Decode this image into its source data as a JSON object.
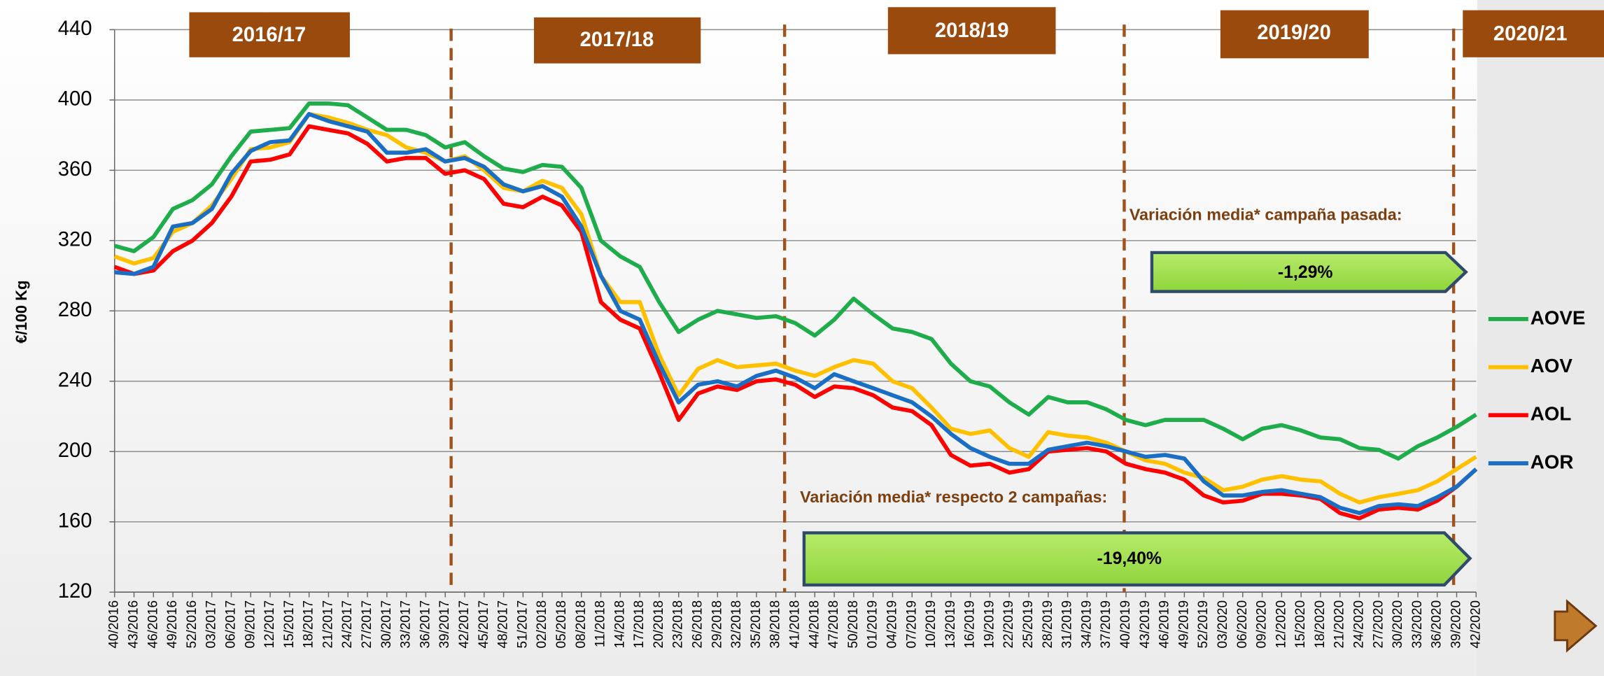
{
  "chart_data": {
    "type": "line",
    "y_label": "€/100 Kg",
    "campaigns": [
      "2016/17",
      "2017/18",
      "2018/19",
      "2019/20",
      "2020/21"
    ],
    "annotations": [
      "Variación media* campaña pasada:",
      "-1,29%",
      "Variación media* respecto 2 campañas:",
      "-19,40%"
    ],
    "categories": [
      "40/2016",
      "43/2016",
      "46/2016",
      "49/2016",
      "52/2016",
      "03/2017",
      "06/2017",
      "09/2017",
      "12/2017",
      "15/2017",
      "18/2017",
      "21/2017",
      "24/2017",
      "27/2017",
      "30/2017",
      "33/2017",
      "36/2017",
      "39/2017",
      "42/2017",
      "45/2017",
      "48/2017",
      "51/2017",
      "02/2018",
      "05/2018",
      "08/2018",
      "11/2018",
      "14/2018",
      "17/2018",
      "20/2018",
      "23/2018",
      "26/2018",
      "29/2018",
      "32/2018",
      "35/2018",
      "38/2018",
      "41/2018",
      "44/2018",
      "47/2018",
      "50/2018",
      "01/2019",
      "04/2019",
      "07/2019",
      "10/2019",
      "13/2019",
      "16/2019",
      "19/2019",
      "22/2019",
      "25/2019",
      "28/2019",
      "31/2019",
      "34/2019",
      "37/2019",
      "40/2019",
      "43/2019",
      "46/2019",
      "49/2019",
      "52/2019",
      "03/2020",
      "06/2020",
      "09/2020",
      "12/2020",
      "15/2020",
      "18/2020",
      "21/2020",
      "24/2020",
      "27/2020",
      "30/2020",
      "33/2020",
      "36/2020",
      "39/2020",
      "42/2020"
    ],
    "series": [
      {
        "name": "AOVE",
        "color": "#1fad4b",
        "values": [
          317,
          314,
          322,
          338,
          343,
          352,
          368,
          382,
          383,
          384,
          398,
          398,
          397,
          390,
          383,
          383,
          380,
          373,
          376,
          368,
          361,
          359,
          363,
          362,
          350,
          320,
          311,
          305,
          285,
          268,
          275,
          280,
          278,
          276,
          277,
          273,
          266,
          275,
          287,
          278,
          270,
          268,
          264,
          250,
          240,
          237,
          228,
          221,
          231,
          228,
          228,
          224,
          218,
          215,
          218,
          218,
          218,
          213,
          207,
          213,
          215,
          212,
          208,
          207,
          202,
          201,
          196,
          203,
          208,
          214,
          221
        ]
      },
      {
        "name": "AOV",
        "color": "#ffc000",
        "values": [
          311,
          307,
          310,
          325,
          330,
          340,
          355,
          372,
          373,
          376,
          392,
          390,
          387,
          383,
          380,
          373,
          370,
          365,
          368,
          360,
          350,
          348,
          354,
          350,
          335,
          300,
          285,
          285,
          255,
          232,
          247,
          252,
          248,
          249,
          250,
          246,
          243,
          248,
          252,
          250,
          240,
          236,
          225,
          213,
          210,
          212,
          202,
          197,
          211,
          209,
          208,
          205,
          200,
          195,
          193,
          188,
          185,
          178,
          180,
          184,
          186,
          184,
          183,
          176,
          171,
          174,
          176,
          178,
          183,
          190,
          197
        ]
      },
      {
        "name": "AOL",
        "color": "#ff0000",
        "values": [
          305,
          301,
          303,
          314,
          320,
          330,
          345,
          365,
          366,
          369,
          385,
          383,
          381,
          375,
          365,
          367,
          367,
          358,
          360,
          355,
          341,
          339,
          345,
          340,
          325,
          285,
          275,
          270,
          245,
          218,
          233,
          237,
          235,
          240,
          241,
          238,
          231,
          237,
          236,
          232,
          225,
          223,
          215,
          198,
          192,
          193,
          188,
          190,
          200,
          201,
          202,
          200,
          193,
          190,
          188,
          184,
          175,
          171,
          172,
          176,
          176,
          175,
          173,
          165,
          162,
          167,
          168,
          167,
          172,
          180,
          190
        ]
      },
      {
        "name": "AOR",
        "color": "#1a6fc4",
        "values": [
          302,
          301,
          305,
          328,
          330,
          338,
          358,
          371,
          376,
          377,
          392,
          388,
          385,
          382,
          370,
          370,
          372,
          365,
          367,
          362,
          352,
          348,
          351,
          345,
          328,
          300,
          280,
          275,
          250,
          228,
          238,
          240,
          237,
          243,
          246,
          242,
          236,
          244,
          240,
          236,
          232,
          228,
          220,
          210,
          202,
          197,
          193,
          193,
          201,
          203,
          205,
          203,
          200,
          197,
          198,
          196,
          183,
          175,
          175,
          177,
          178,
          176,
          174,
          168,
          165,
          169,
          170,
          169,
          174,
          180,
          190
        ]
      }
    ],
    "ylim": [
      120,
      440
    ],
    "yticks": [
      120,
      160,
      200,
      240,
      280,
      320,
      360,
      400,
      440
    ],
    "grid": true,
    "legend": "right"
  }
}
